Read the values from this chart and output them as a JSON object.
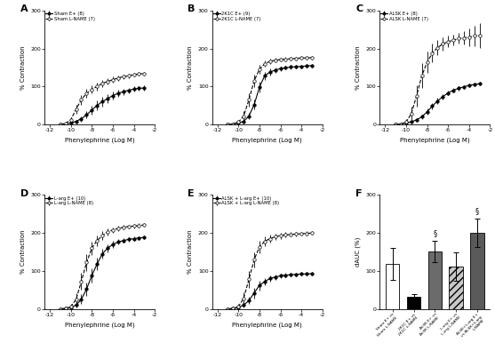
{
  "x_log": [
    -11,
    -10.5,
    -10,
    -9.5,
    -9,
    -8.5,
    -8,
    -7.5,
    -7,
    -6.5,
    -6,
    -5.5,
    -5,
    -4.5,
    -4,
    -3.5,
    -3
  ],
  "panels": {
    "A": {
      "label": "A",
      "legend1": "Sham E+ (8)",
      "legend2": "Sham L-NAME (7)",
      "filled": [
        0,
        1,
        4,
        8,
        15,
        25,
        38,
        50,
        60,
        68,
        76,
        82,
        86,
        90,
        93,
        95,
        96
      ],
      "filled_err": [
        0,
        0,
        2,
        4,
        7,
        9,
        12,
        13,
        13,
        11,
        10,
        9,
        8,
        7,
        7,
        6,
        6
      ],
      "open": [
        0,
        3,
        12,
        40,
        65,
        82,
        92,
        100,
        108,
        113,
        118,
        122,
        126,
        128,
        131,
        133,
        134
      ],
      "open_err": [
        0,
        2,
        7,
        12,
        13,
        12,
        11,
        10,
        9,
        8,
        8,
        7,
        6,
        6,
        5,
        5,
        5
      ]
    },
    "B": {
      "label": "B",
      "legend1": "2K1C E+ (9)",
      "legend2": "2K1C L-NAME (7)",
      "filled": [
        0,
        1,
        4,
        8,
        22,
        52,
        98,
        128,
        138,
        143,
        147,
        149,
        151,
        152,
        153,
        154,
        155
      ],
      "filled_err": [
        0,
        0,
        2,
        4,
        8,
        13,
        14,
        11,
        9,
        7,
        6,
        5,
        5,
        5,
        5,
        5,
        5
      ],
      "open": [
        0,
        1,
        6,
        22,
        65,
        115,
        145,
        160,
        166,
        169,
        171,
        172,
        173,
        174,
        175,
        175,
        176
      ],
      "open_err": [
        0,
        1,
        4,
        13,
        18,
        16,
        11,
        9,
        7,
        6,
        5,
        5,
        5,
        5,
        5,
        5,
        5
      ]
    },
    "C": {
      "label": "C",
      "legend1": "ALSK E+ (8)",
      "legend2": "ALSK L-NAME (7)",
      "filled": [
        0,
        1,
        4,
        7,
        12,
        20,
        33,
        48,
        62,
        73,
        83,
        90,
        95,
        99,
        103,
        105,
        107
      ],
      "filled_err": [
        0,
        0,
        1,
        2,
        4,
        6,
        8,
        9,
        8,
        7,
        6,
        5,
        5,
        5,
        5,
        5,
        5
      ],
      "open": [
        0,
        1,
        6,
        28,
        75,
        128,
        163,
        188,
        202,
        212,
        218,
        222,
        226,
        228,
        230,
        233,
        235
      ],
      "open_err": [
        0,
        1,
        7,
        18,
        28,
        33,
        28,
        24,
        20,
        17,
        15,
        14,
        14,
        18,
        23,
        28,
        33
      ]
    },
    "D": {
      "label": "D",
      "legend1": "L-arg E+ (10)",
      "legend2": "L-arg L-NAME (8)",
      "filled": [
        0,
        1,
        4,
        10,
        25,
        52,
        88,
        118,
        145,
        160,
        170,
        176,
        180,
        183,
        185,
        187,
        188
      ],
      "filled_err": [
        0,
        0,
        2,
        7,
        13,
        18,
        18,
        16,
        13,
        11,
        9,
        7,
        6,
        6,
        5,
        5,
        5
      ],
      "open": [
        0,
        1,
        6,
        25,
        72,
        122,
        160,
        180,
        193,
        203,
        208,
        212,
        215,
        217,
        218,
        220,
        221
      ],
      "open_err": [
        0,
        1,
        7,
        16,
        22,
        22,
        18,
        14,
        11,
        9,
        7,
        6,
        6,
        5,
        5,
        5,
        5
      ]
    },
    "E": {
      "label": "E",
      "legend1": "ALSK + L-arg E+ (10)",
      "legend2": "ALSK + L-arg L-NAME (8)",
      "filled": [
        0,
        1,
        4,
        10,
        22,
        42,
        62,
        72,
        80,
        84,
        87,
        89,
        90,
        91,
        92,
        92,
        93
      ],
      "filled_err": [
        0,
        0,
        2,
        6,
        10,
        14,
        13,
        10,
        8,
        7,
        6,
        5,
        5,
        5,
        5,
        5,
        5
      ],
      "open": [
        0,
        1,
        6,
        28,
        78,
        130,
        163,
        178,
        185,
        190,
        193,
        195,
        196,
        197,
        198,
        199,
        200
      ],
      "open_err": [
        0,
        1,
        7,
        16,
        22,
        20,
        16,
        13,
        10,
        9,
        8,
        7,
        6,
        5,
        5,
        5,
        5
      ]
    }
  },
  "F": {
    "label": "F",
    "categories": [
      "Sham E+ vs\nSham L-NAME",
      "2K1C E+ vs\n2K1C L-NAME",
      "ALSK E+ vs\nALSK L-NAME",
      "L-arg E+ vs\nL-arg L-NAME",
      "ALSK+L-arg E+ vs\nALSK+L-arg\nL-NAME"
    ],
    "values": [
      118,
      32,
      152,
      112,
      200
    ],
    "errors": [
      42,
      8,
      28,
      38,
      38
    ],
    "colors": [
      "white",
      "black",
      "darkgray",
      "dotted_gray",
      "darkgray2"
    ],
    "edge_colors": [
      "black",
      "black",
      "black",
      "black",
      "black"
    ],
    "sig_markers": [
      null,
      null,
      "§",
      null,
      "§"
    ],
    "hatch": [
      null,
      null,
      null,
      "///",
      null
    ]
  },
  "yticks_line": [
    0,
    100,
    200,
    300
  ],
  "xticks_log": [
    -12,
    -10,
    -8,
    -6,
    -4,
    -2
  ],
  "xlabel": "Phenylephrine (Log M)",
  "ylabel": "% Contraction",
  "ylabel_F": "dAUC (%)",
  "ylim_line": [
    0,
    300
  ],
  "ylim_bar": [
    0,
    300
  ],
  "background": "white"
}
